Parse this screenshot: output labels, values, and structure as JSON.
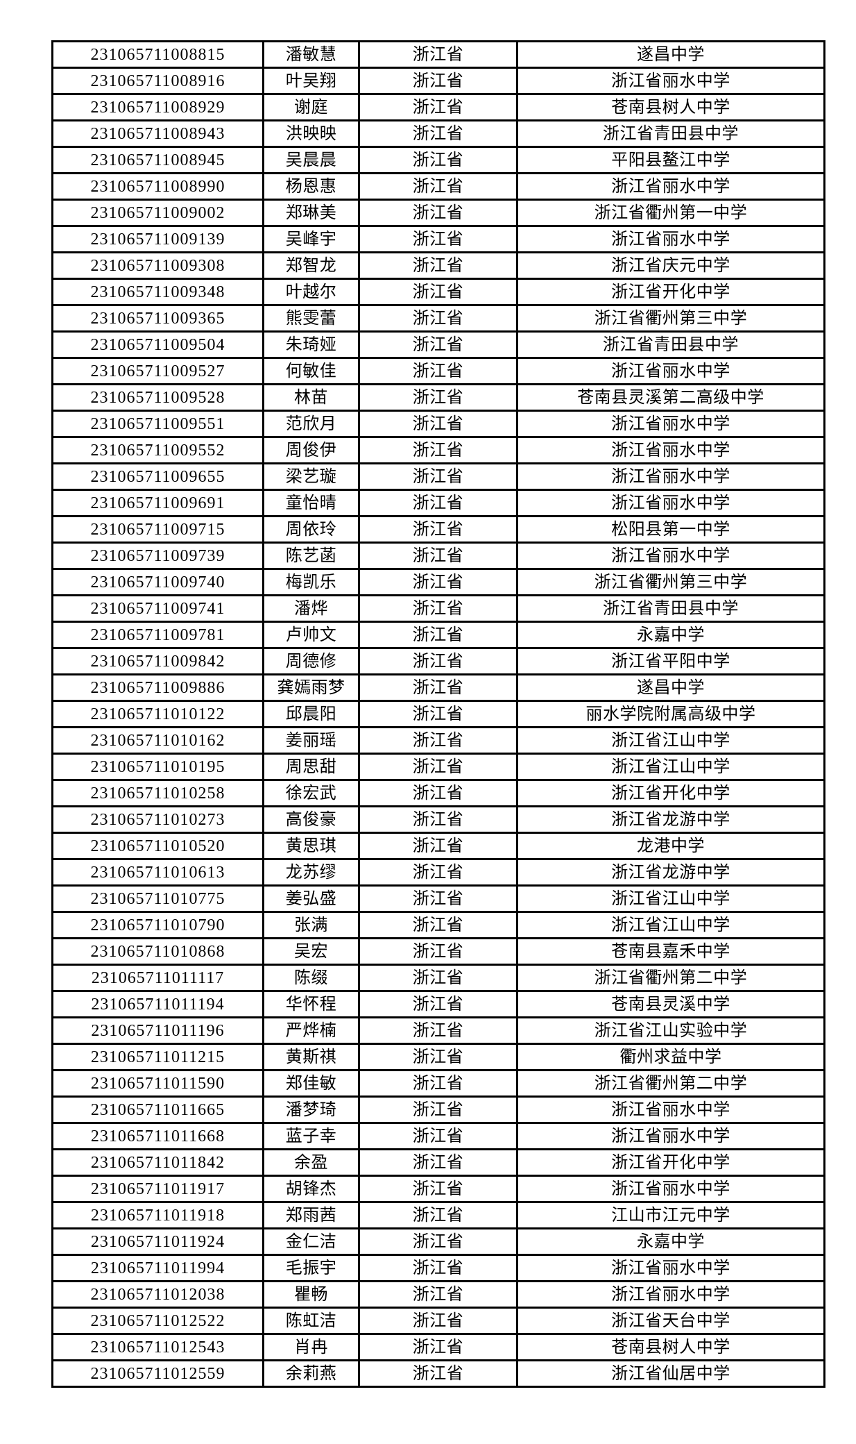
{
  "page": {
    "background_color": "#ffffff",
    "text_color": "#000000",
    "border_color": "#000000"
  },
  "table": {
    "columns": [
      "candidate_id",
      "name",
      "province",
      "school"
    ],
    "province_repeated_value": "浙江省",
    "rows": [
      [
        "231065711008815",
        "潘敏慧",
        "浙江省",
        "遂昌中学"
      ],
      [
        "231065711008916",
        "叶吴翔",
        "浙江省",
        "浙江省丽水中学"
      ],
      [
        "231065711008929",
        "谢庭",
        "浙江省",
        "苍南县树人中学"
      ],
      [
        "231065711008943",
        "洪映映",
        "浙江省",
        "浙江省青田县中学"
      ],
      [
        "231065711008945",
        "吴晨晨",
        "浙江省",
        "平阳县鳌江中学"
      ],
      [
        "231065711008990",
        "杨恩惠",
        "浙江省",
        "浙江省丽水中学"
      ],
      [
        "231065711009002",
        "郑琳美",
        "浙江省",
        "浙江省衢州第一中学"
      ],
      [
        "231065711009139",
        "吴峰宇",
        "浙江省",
        "浙江省丽水中学"
      ],
      [
        "231065711009308",
        "郑智龙",
        "浙江省",
        "浙江省庆元中学"
      ],
      [
        "231065711009348",
        "叶越尔",
        "浙江省",
        "浙江省开化中学"
      ],
      [
        "231065711009365",
        "熊雯蕾",
        "浙江省",
        "浙江省衢州第三中学"
      ],
      [
        "231065711009504",
        "朱琦娅",
        "浙江省",
        "浙江省青田县中学"
      ],
      [
        "231065711009527",
        "何敏佳",
        "浙江省",
        "浙江省丽水中学"
      ],
      [
        "231065711009528",
        "林苗",
        "浙江省",
        "苍南县灵溪第二高级中学"
      ],
      [
        "231065711009551",
        "范欣月",
        "浙江省",
        "浙江省丽水中学"
      ],
      [
        "231065711009552",
        "周俊伊",
        "浙江省",
        "浙江省丽水中学"
      ],
      [
        "231065711009655",
        "梁艺璇",
        "浙江省",
        "浙江省丽水中学"
      ],
      [
        "231065711009691",
        "童怡晴",
        "浙江省",
        "浙江省丽水中学"
      ],
      [
        "231065711009715",
        "周依玲",
        "浙江省",
        "松阳县第一中学"
      ],
      [
        "231065711009739",
        "陈艺菡",
        "浙江省",
        "浙江省丽水中学"
      ],
      [
        "231065711009740",
        "梅凯乐",
        "浙江省",
        "浙江省衢州第三中学"
      ],
      [
        "231065711009741",
        "潘烨",
        "浙江省",
        "浙江省青田县中学"
      ],
      [
        "231065711009781",
        "卢帅文",
        "浙江省",
        "永嘉中学"
      ],
      [
        "231065711009842",
        "周德修",
        "浙江省",
        "浙江省平阳中学"
      ],
      [
        "231065711009886",
        "龚嫣雨梦",
        "浙江省",
        "遂昌中学"
      ],
      [
        "231065711010122",
        "邱晨阳",
        "浙江省",
        "丽水学院附属高级中学"
      ],
      [
        "231065711010162",
        "姜丽瑶",
        "浙江省",
        "浙江省江山中学"
      ],
      [
        "231065711010195",
        "周思甜",
        "浙江省",
        "浙江省江山中学"
      ],
      [
        "231065711010258",
        "徐宏武",
        "浙江省",
        "浙江省开化中学"
      ],
      [
        "231065711010273",
        "高俊豪",
        "浙江省",
        "浙江省龙游中学"
      ],
      [
        "231065711010520",
        "黄思琪",
        "浙江省",
        "龙港中学"
      ],
      [
        "231065711010613",
        "龙苏缪",
        "浙江省",
        "浙江省龙游中学"
      ],
      [
        "231065711010775",
        "姜弘盛",
        "浙江省",
        "浙江省江山中学"
      ],
      [
        "231065711010790",
        "张满",
        "浙江省",
        "浙江省江山中学"
      ],
      [
        "231065711010868",
        "吴宏",
        "浙江省",
        "苍南县嘉禾中学"
      ],
      [
        "231065711011117",
        "陈缀",
        "浙江省",
        "浙江省衢州第二中学"
      ],
      [
        "231065711011194",
        "华怀程",
        "浙江省",
        "苍南县灵溪中学"
      ],
      [
        "231065711011196",
        "严烨楠",
        "浙江省",
        "浙江省江山实验中学"
      ],
      [
        "231065711011215",
        "黄斯祺",
        "浙江省",
        "衢州求益中学"
      ],
      [
        "231065711011590",
        "郑佳敏",
        "浙江省",
        "浙江省衢州第二中学"
      ],
      [
        "231065711011665",
        "潘梦琦",
        "浙江省",
        "浙江省丽水中学"
      ],
      [
        "231065711011668",
        "蓝子幸",
        "浙江省",
        "浙江省丽水中学"
      ],
      [
        "231065711011842",
        "余盈",
        "浙江省",
        "浙江省开化中学"
      ],
      [
        "231065711011917",
        "胡锋杰",
        "浙江省",
        "浙江省丽水中学"
      ],
      [
        "231065711011918",
        "郑雨茜",
        "浙江省",
        "江山市江元中学"
      ],
      [
        "231065711011924",
        "金仁洁",
        "浙江省",
        "永嘉中学"
      ],
      [
        "231065711011994",
        "毛振宇",
        "浙江省",
        "浙江省丽水中学"
      ],
      [
        "231065711012038",
        "瞿畅",
        "浙江省",
        "浙江省丽水中学"
      ],
      [
        "231065711012522",
        "陈虹洁",
        "浙江省",
        "浙江省天台中学"
      ],
      [
        "231065711012543",
        "肖冉",
        "浙江省",
        "苍南县树人中学"
      ],
      [
        "231065711012559",
        "余莉燕",
        "浙江省",
        "浙江省仙居中学"
      ]
    ]
  }
}
